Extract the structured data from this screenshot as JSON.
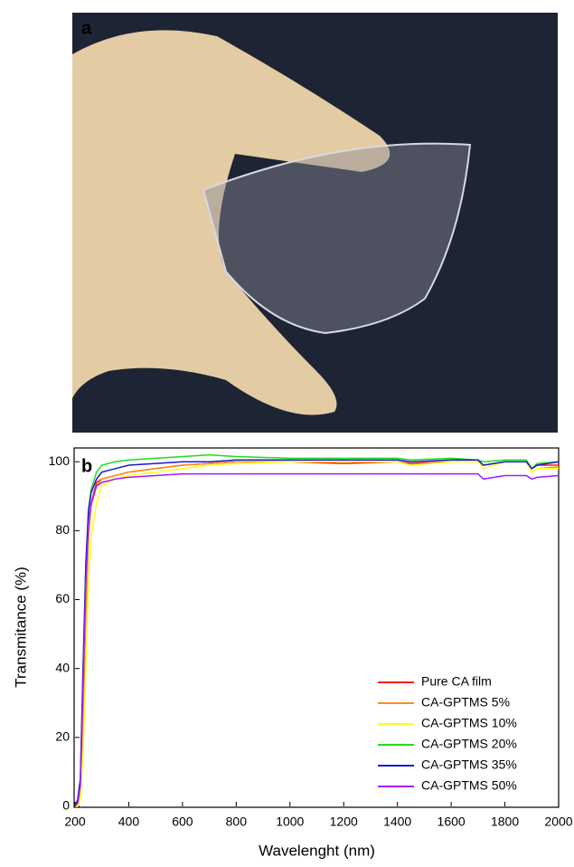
{
  "photo_label": "a",
  "chart_data": {
    "type": "line",
    "panel_label": "b",
    "x_label": "Wavelenght (nm)",
    "y_label": "Transmitance (%)",
    "x": [
      200,
      210,
      220,
      230,
      240,
      250,
      260,
      280,
      300,
      350,
      400,
      500,
      600,
      700,
      800,
      1000,
      1200,
      1400,
      1450,
      1600,
      1700,
      1720,
      1800,
      1880,
      1900,
      1920,
      2000
    ],
    "series": [
      {
        "name": "Pure CA film",
        "color": "#ff1a1a",
        "values": [
          0,
          1,
          5,
          30,
          60,
          80,
          88,
          94,
          95,
          96,
          97,
          98,
          99,
          99.5,
          100,
          100,
          99.5,
          100,
          99.5,
          100,
          100,
          99,
          100,
          100,
          98,
          99,
          99
        ]
      },
      {
        "name": "CA-GPTMS 5%",
        "color": "#ff8c1a",
        "values": [
          0,
          1,
          4,
          25,
          55,
          78,
          87,
          93,
          95,
          96,
          97,
          98,
          99,
          99.5,
          100,
          100,
          100,
          100,
          99,
          100,
          100,
          99,
          100,
          100,
          97,
          98,
          98.5
        ]
      },
      {
        "name": "CA-GPTMS 10%",
        "color": "#ffff1a",
        "values": [
          0,
          0,
          2,
          15,
          40,
          65,
          78,
          88,
          93,
          95,
          96,
          97,
          98,
          99,
          99.5,
          100,
          100,
          100,
          99,
          100,
          100,
          98,
          100,
          100,
          97,
          98,
          98
        ]
      },
      {
        "name": "CA-GPTMS 20%",
        "color": "#1ae01a",
        "values": [
          0,
          2,
          8,
          40,
          70,
          86,
          92,
          97,
          99,
          100,
          100.5,
          101,
          101.5,
          102,
          101.5,
          101,
          101,
          101,
          100.5,
          101,
          100.5,
          100,
          100.5,
          100.5,
          98,
          99.5,
          100
        ]
      },
      {
        "name": "CA-GPTMS 35%",
        "color": "#1a1acc",
        "values": [
          0,
          2,
          8,
          40,
          70,
          86,
          91,
          95,
          97,
          98,
          99,
          99.5,
          100,
          100,
          100.5,
          100.5,
          100.5,
          100.5,
          100,
          100.5,
          100.5,
          99,
          100,
          100,
          98,
          99,
          100
        ]
      },
      {
        "name": "CA-GPTMS 50%",
        "color": "#a31aff",
        "values": [
          0,
          1,
          6,
          35,
          65,
          82,
          88,
          93,
          94,
          95,
          95.5,
          96,
          96.5,
          96.5,
          96.5,
          96.5,
          96.5,
          96.5,
          96.5,
          96.5,
          96.5,
          95,
          96,
          96,
          95,
          95.5,
          96
        ]
      }
    ],
    "xlim": [
      200,
      2000
    ],
    "xticks": [
      200,
      400,
      600,
      800,
      1000,
      1200,
      1400,
      1600,
      1800,
      2000
    ],
    "ylim": [
      0,
      104
    ],
    "yticks": [
      0,
      20,
      40,
      60,
      80,
      100
    ],
    "legend": "lower right"
  }
}
